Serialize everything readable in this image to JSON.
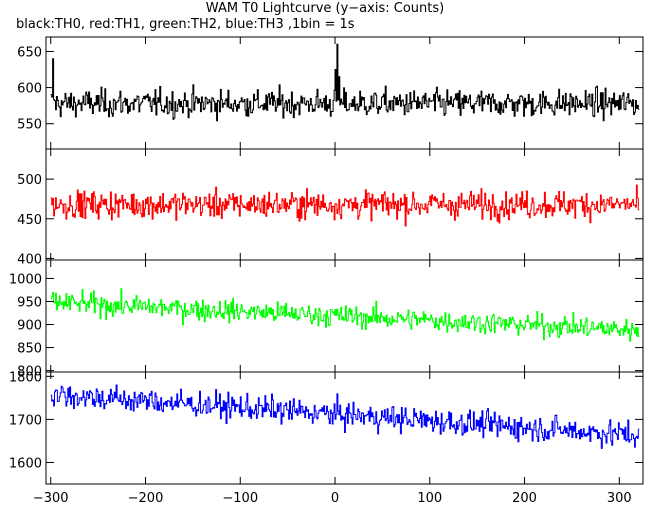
{
  "chart_data": {
    "type": "line",
    "title": "WAM T0 Lightcurve (y−axis: Counts)",
    "subtitle": "black:TH0, red:TH1, green:TH2, blue:TH3 ,1bin = 1s",
    "xlabel": "",
    "ylabel": "",
    "xlim": [
      -305,
      325
    ],
    "x_ticks": [
      -300,
      -200,
      -100,
      0,
      100,
      200,
      300
    ],
    "x_tick_labels": [
      "−300",
      "−200",
      "−100",
      "0",
      "100",
      "200",
      "300"
    ],
    "x_start": -300,
    "x_end": 320,
    "x_step": 1,
    "grid": false,
    "panels": [
      {
        "series": "TH0",
        "color": "#000000",
        "ylim": [
          515,
          670
        ],
        "y_ticks": [
          550,
          600,
          650
        ],
        "y_tick_labels": [
          "550",
          "600",
          "650"
        ],
        "mean": 578,
        "noise": 24,
        "trend": 0,
        "features": [
          {
            "x": -298,
            "y": 640
          },
          {
            "x": 0,
            "y": 625
          },
          {
            "x": 2,
            "y": 660
          },
          {
            "x": 4,
            "y": 615
          }
        ]
      },
      {
        "series": "TH1",
        "color": "#ff0000",
        "ylim": [
          398,
          538
        ],
        "y_ticks": [
          400,
          450,
          500
        ],
        "y_tick_labels": [
          "400",
          "450",
          "500"
        ],
        "mean": 468,
        "noise": 22,
        "trend": 0,
        "features": []
      },
      {
        "series": "TH2",
        "color": "#00ff00",
        "ylim": [
          797,
          1040
        ],
        "y_ticks": [
          800,
          850,
          900,
          950,
          1000
        ],
        "y_tick_labels": [
          "800",
          "850",
          "900",
          "950",
          "1000"
        ],
        "mean": 948,
        "noise": 30,
        "trend": -60,
        "features": []
      },
      {
        "series": "TH3",
        "color": "#0000ff",
        "ylim": [
          1550,
          1810
        ],
        "y_ticks": [
          1600,
          1700,
          1800
        ],
        "y_tick_labels": [
          "1600",
          "1700",
          "1800"
        ],
        "mean": 1758,
        "noise": 38,
        "trend": -95,
        "features": []
      }
    ]
  }
}
